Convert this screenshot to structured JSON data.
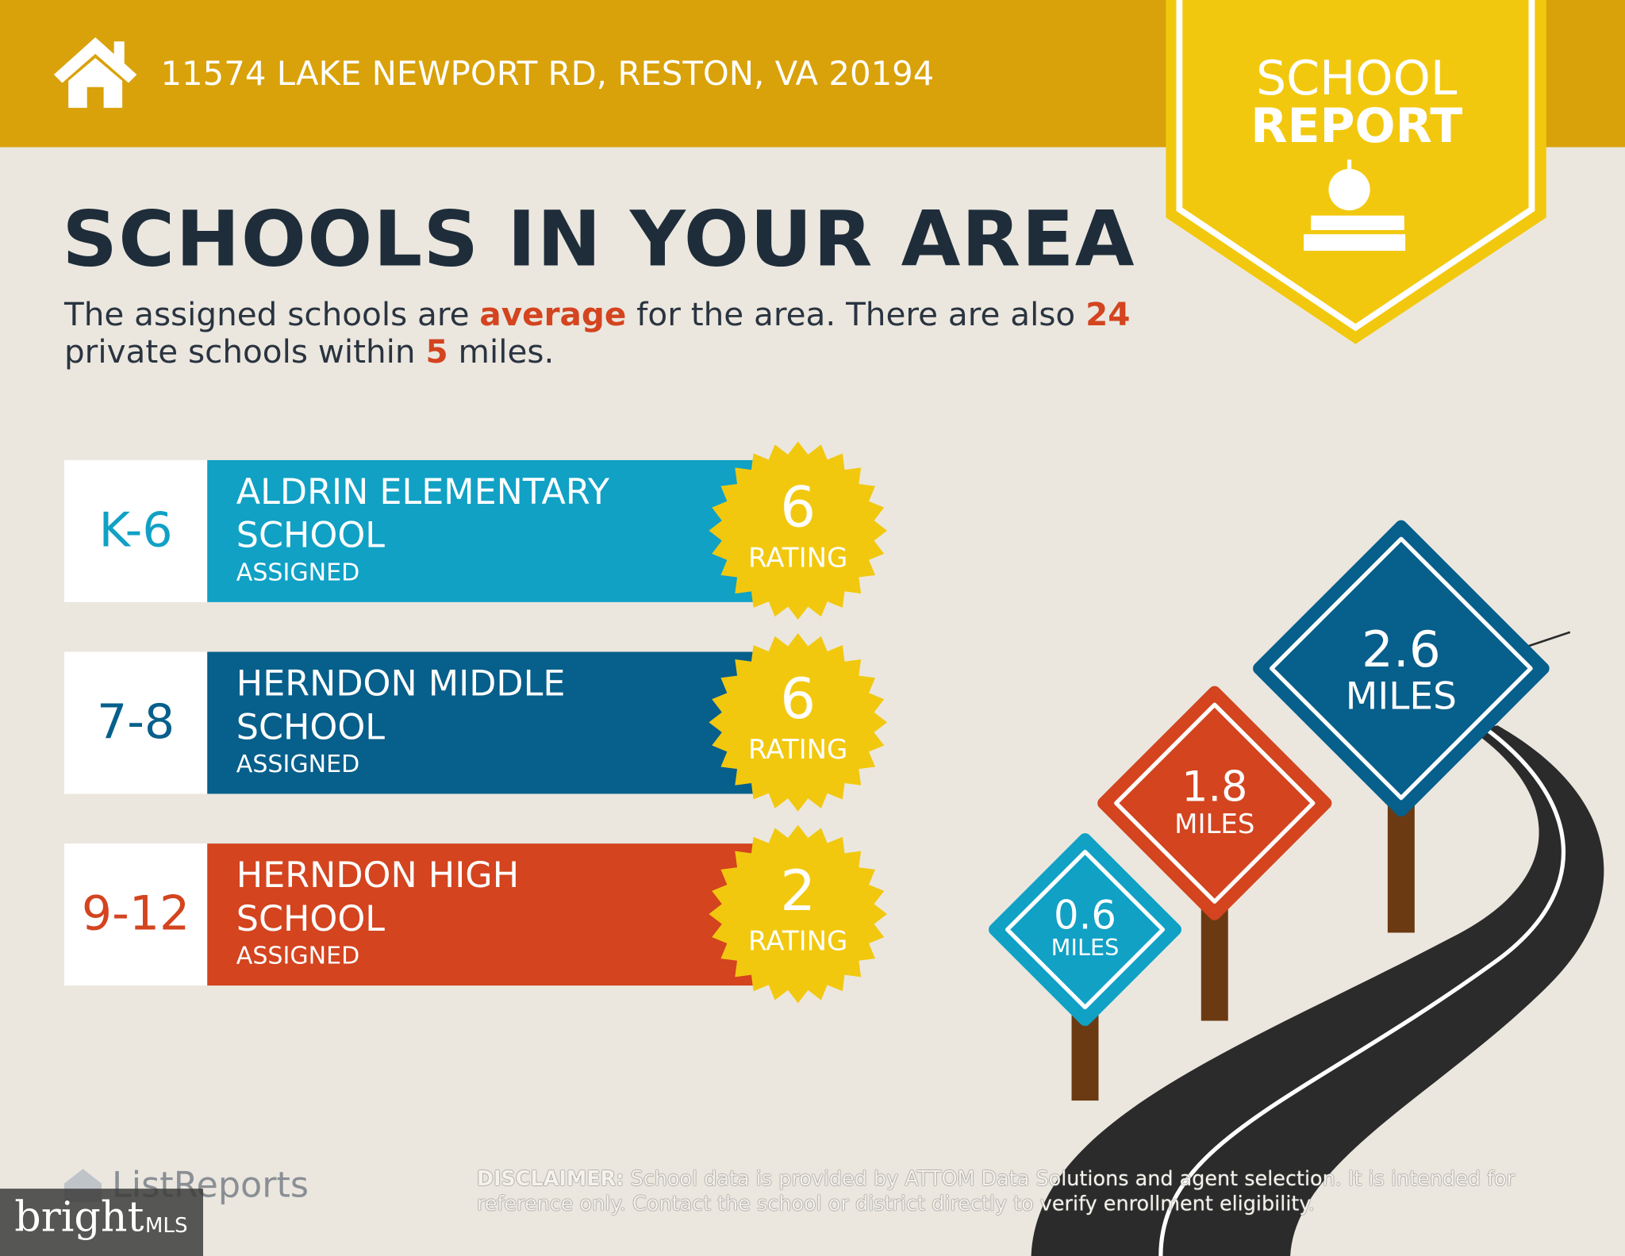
{
  "header": {
    "address": "11574 LAKE NEWPORT RD, RESTON, VA 20194"
  },
  "badge": {
    "line1": "SCHOOL",
    "line2": "REPORT"
  },
  "title": "SCHOOLS IN YOUR AREA",
  "summary": {
    "part1": "The assigned schools are ",
    "quality": "average",
    "part2": " for the area. There are also ",
    "private_schools": 24,
    "part3": " private schools within ",
    "radius": 5,
    "part4": " miles."
  },
  "schools": [
    {
      "grade": "K-6",
      "name": [
        "ALDRIN ELEMENTARY",
        "SCHOOL"
      ],
      "status": "ASSIGNED",
      "rating": 6,
      "rating_label": "RATING",
      "color": "#10a1c5"
    },
    {
      "grade": "7-8",
      "name": [
        "HERNDON MIDDLE",
        "SCHOOL"
      ],
      "status": "ASSIGNED",
      "rating": 6,
      "rating_label": "RATING",
      "color": "#075f8b"
    },
    {
      "grade": "9-12",
      "name": [
        "HERNDON HIGH",
        "SCHOOL"
      ],
      "status": "ASSIGNED",
      "rating": 2,
      "rating_label": "RATING",
      "color": "#d3441f"
    }
  ],
  "distances": [
    {
      "value": 0.6,
      "unit": "MILES",
      "color": "#10a1c5"
    },
    {
      "value": 1.8,
      "unit": "MILES",
      "color": "#d3441f"
    },
    {
      "value": 2.6,
      "unit": "MILES",
      "color": "#075f8b"
    }
  ],
  "footer": {
    "logo": "ListReports",
    "disclaimer_label": "DISCLAIMER:",
    "disclaimer": " School data is provided by ATTOM Data Solutions and agent selection. It is intended for reference only. Contact the school or district directly to verify enrollment eligibility.",
    "watermark": "bright",
    "watermark_mls": "MLS"
  }
}
